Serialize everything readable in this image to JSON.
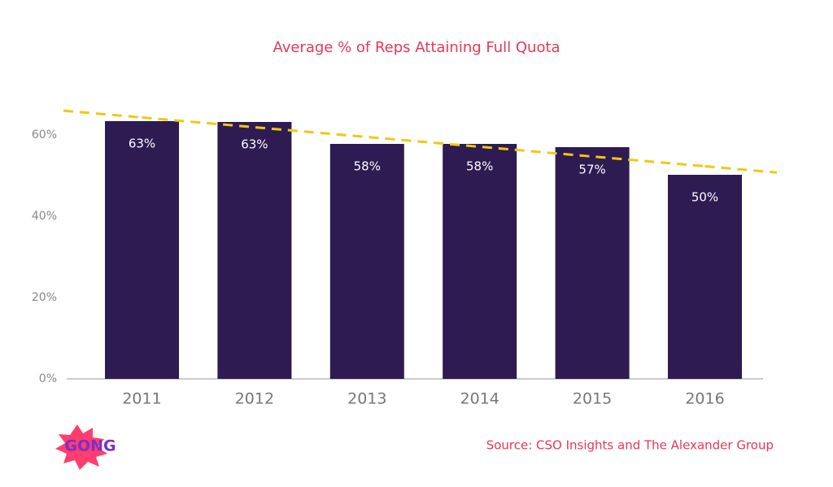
{
  "chart_data": {
    "type": "bar",
    "title": "Average % of Reps Attaining Full Quota",
    "categories": [
      "2011",
      "2012",
      "2013",
      "2014",
      "2015",
      "2016"
    ],
    "values": [
      63.4,
      63.2,
      57.8,
      57.8,
      57,
      50.2
    ],
    "value_labels": [
      "63%",
      "63%",
      "58%",
      "58%",
      "57%",
      "50%"
    ],
    "color": "#2d1b52",
    "trend": {
      "color": "#f2c811",
      "values": [
        64.3,
        61.9,
        59.5,
        57.1,
        54.7,
        52.3
      ]
    },
    "ylim": [
      0,
      70
    ],
    "yticks": [
      {
        "value": 0,
        "label": "0%"
      },
      {
        "value": 20,
        "label": "20%"
      },
      {
        "value": 40,
        "label": "40%"
      },
      {
        "value": 60,
        "label": "60%"
      }
    ],
    "source": "Source: CSO Insights and The Alexander Group",
    "logo": "GONG"
  }
}
